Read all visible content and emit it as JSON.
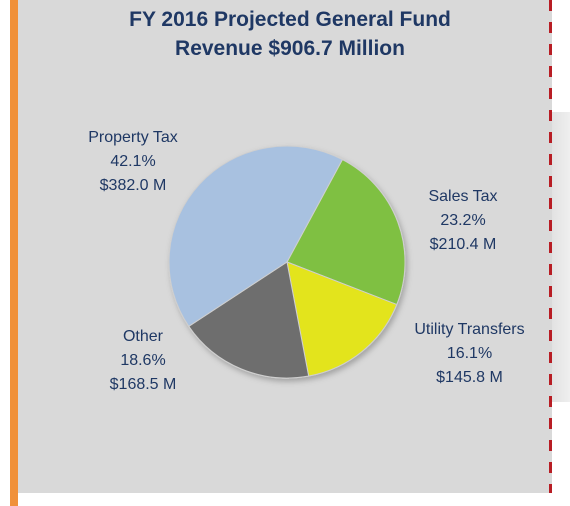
{
  "chart_data": {
    "type": "pie",
    "title": "FY 2016 Projected General Fund",
    "subtitle": "Revenue $906.7 Million",
    "slices": [
      {
        "name": "Property Tax",
        "percent_label": "42.1%",
        "amount_label": "$382.0 M",
        "value": 382.0,
        "color": "#a8c1e0"
      },
      {
        "name": "Sales Tax",
        "percent_label": "23.2%",
        "amount_label": "$210.4 M",
        "value": 210.4,
        "color": "#7fc043"
      },
      {
        "name": "Utility Transfers",
        "percent_label": "16.1%",
        "amount_label": "$145.8 M",
        "value": 145.8,
        "color": "#e3e41b"
      },
      {
        "name": "Other",
        "percent_label": "18.6%",
        "amount_label": "$168.5 M",
        "value": 168.5,
        "color": "#6e6e6e"
      }
    ]
  }
}
